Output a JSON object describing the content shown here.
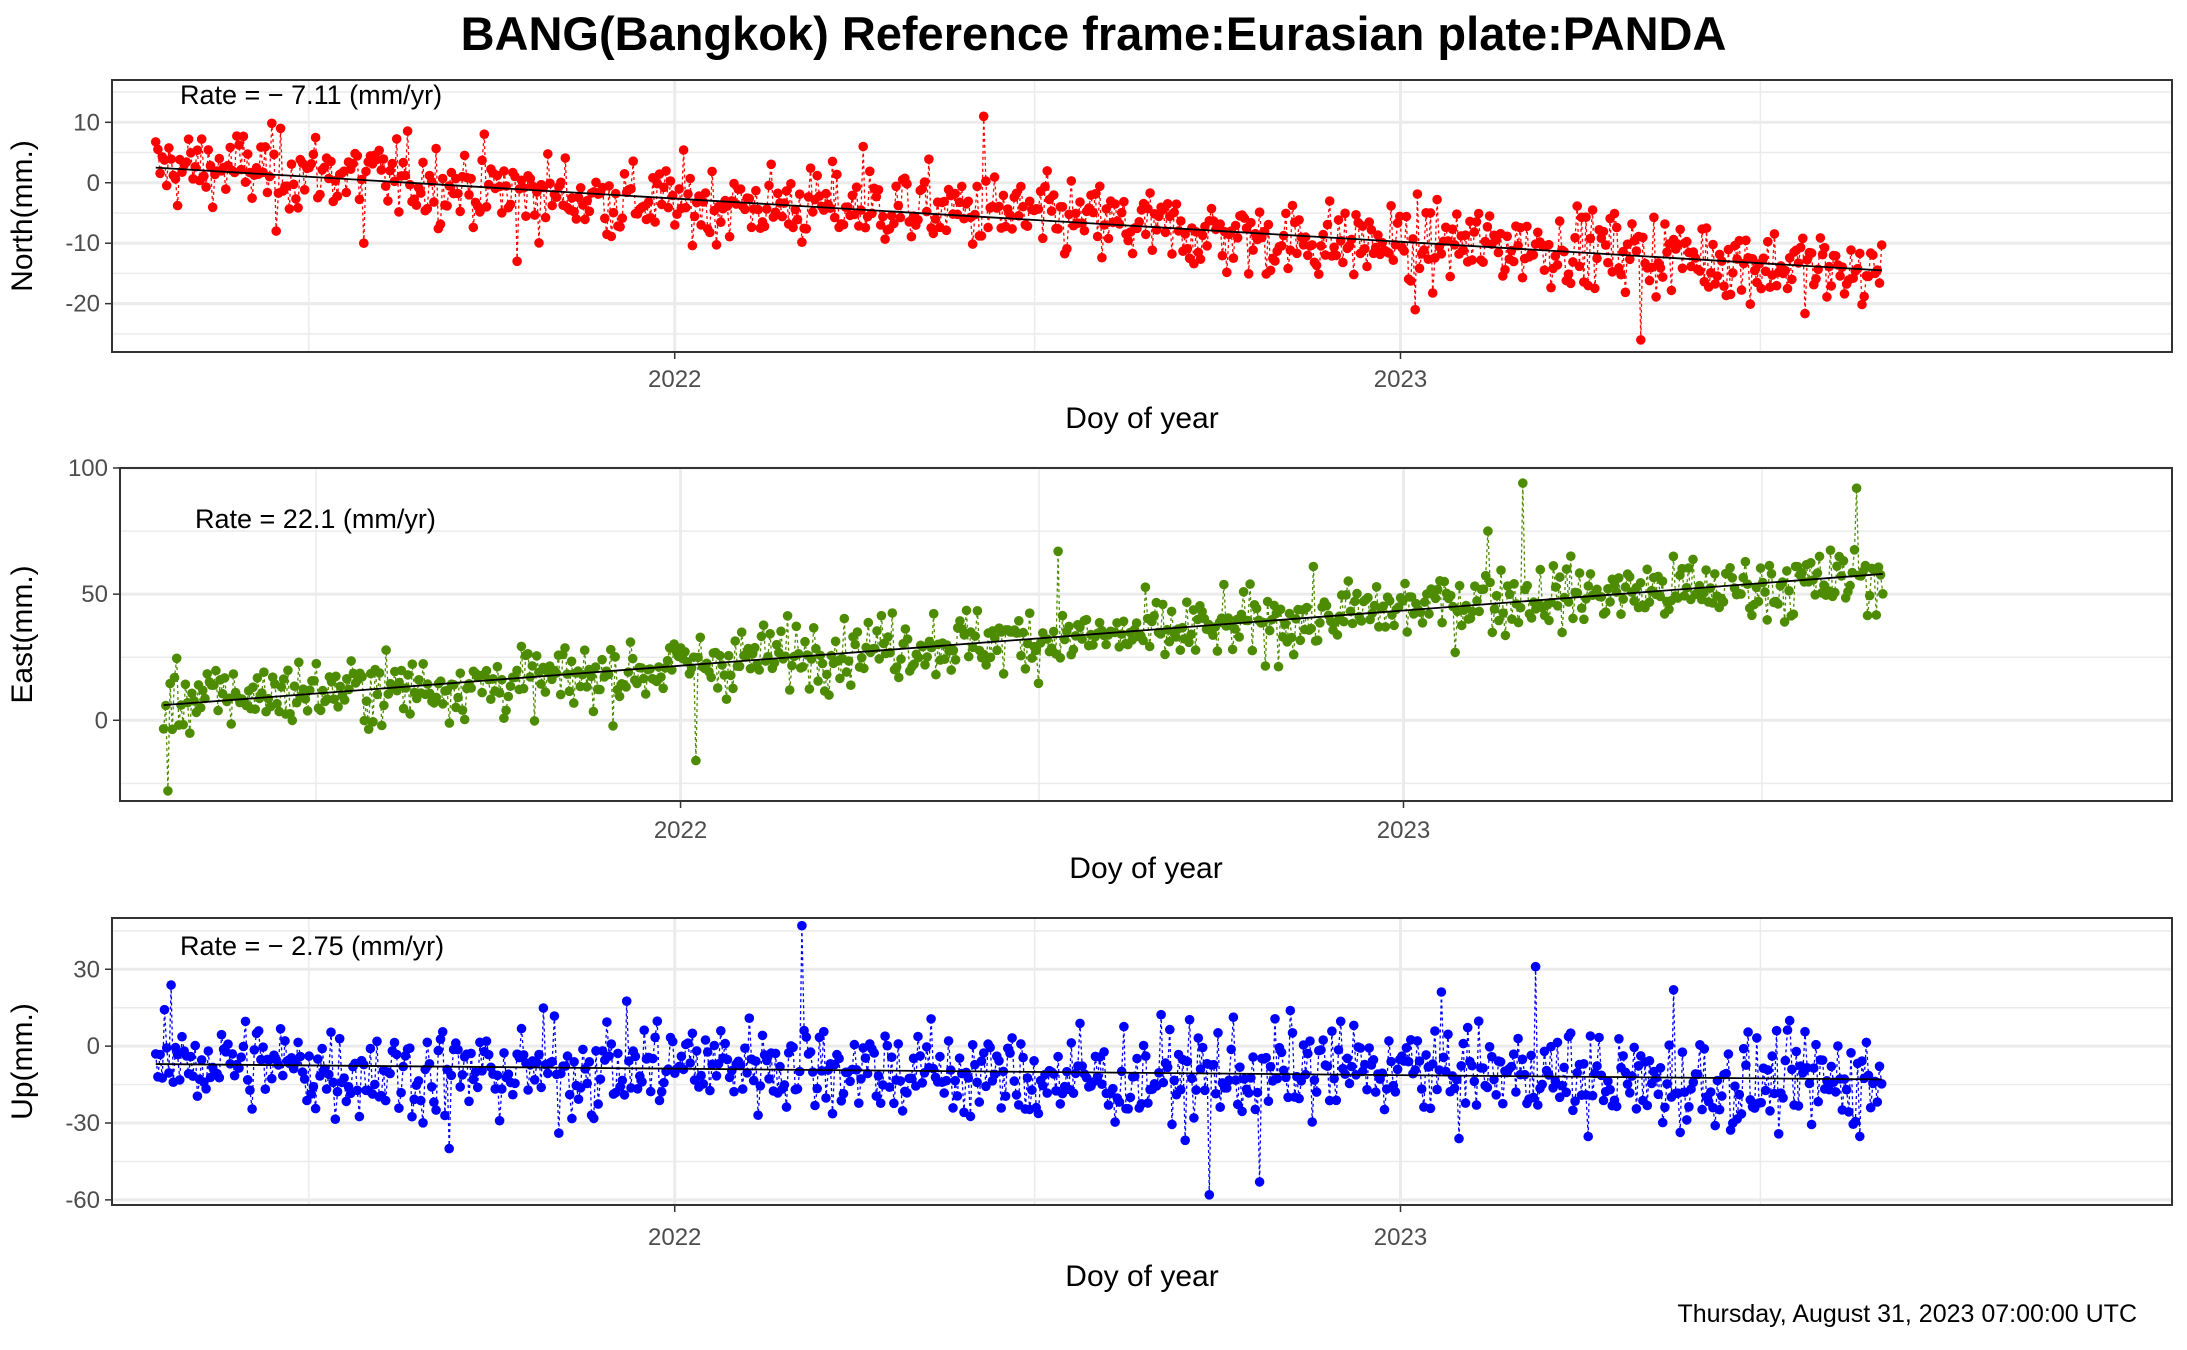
{
  "title": "BANG(Bangkok) Reference frame:Eurasian plate:PANDA",
  "footer": "Thursday, August 31, 2023 07:00:00 UTC",
  "colors": {
    "north": "#ff0000",
    "east": "#4d8c00",
    "up": "#0000ff",
    "trend": "#000000",
    "grid": "#ebebeb"
  },
  "chart_data": [
    {
      "type": "scatter",
      "ylabel": "North(mm.)",
      "xlabel": "Doy of year",
      "rate_label": "Rate = − 7.11 (mm/yr)",
      "rate_mm_per_yr": -7.11,
      "xlim": [
        "2021-03-24",
        "2024-01-24"
      ],
      "ylim": [
        -28,
        17
      ],
      "yticks": [
        10,
        0,
        -10,
        -20
      ],
      "xticks": [
        "2022",
        "2023"
      ],
      "grid": true,
      "series": [
        {
          "name": "",
          "data_range": [
            "2021-04-15",
            "2023-08-31"
          ],
          "trend": [
            2.5,
            -14.5
          ],
          "noise": 3.2,
          "outliers": [
            [
              0.48,
              11
            ],
            [
              0.07,
              -8
            ],
            [
              0.12,
              -10
            ],
            [
              0.86,
              -26
            ],
            [
              0.73,
              -21
            ],
            [
              0.21,
              -13
            ],
            [
              0.41,
              6
            ]
          ]
        }
      ]
    },
    {
      "type": "scatter",
      "ylabel": "East(mm.)",
      "xlabel": "Doy of year",
      "rate_label": "Rate = 22.1 (mm/yr)",
      "rate_mm_per_yr": 22.1,
      "xlim": [
        "2021-03-24",
        "2024-01-24"
      ],
      "ylim": [
        -32,
        100
      ],
      "yticks": [
        100,
        50,
        0
      ],
      "xticks": [
        "2022",
        "2023"
      ],
      "grid": true,
      "series": [
        {
          "name": "",
          "data_range": [
            "2021-04-15",
            "2023-08-31"
          ],
          "trend": [
            6,
            58
          ],
          "noise": 6.5,
          "outliers": [
            [
              0.003,
              -28
            ],
            [
              0.79,
              94
            ],
            [
              0.985,
              92
            ],
            [
              0.77,
              75
            ],
            [
              0.31,
              -16
            ],
            [
              0.52,
              67
            ]
          ]
        }
      ]
    },
    {
      "type": "scatter",
      "ylabel": "Up(mm.)",
      "xlabel": "Doy of year",
      "rate_label": "Rate = − 2.75 (mm/yr)",
      "rate_mm_per_yr": -2.75,
      "xlim": [
        "2021-03-24",
        "2024-01-24"
      ],
      "ylim": [
        -62,
        50
      ],
      "yticks": [
        30,
        0,
        -30,
        -60
      ],
      "xticks": [
        "2022",
        "2023"
      ],
      "grid": true,
      "series": [
        {
          "name": "",
          "data_range": [
            "2021-04-15",
            "2023-08-31"
          ],
          "trend": [
            -7,
            -13
          ],
          "noise": 9.5,
          "outliers": [
            [
              0.375,
              47
            ],
            [
              0.8,
              31
            ],
            [
              0.61,
              -58
            ],
            [
              0.64,
              -53
            ],
            [
              0.88,
              22
            ],
            [
              0.17,
              -40
            ]
          ]
        }
      ]
    }
  ]
}
